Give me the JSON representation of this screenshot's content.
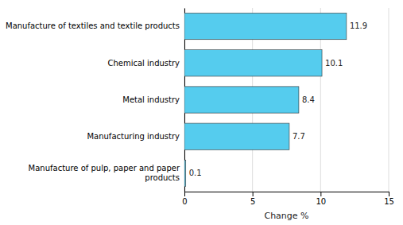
{
  "chart_data": {
    "type": "bar",
    "orientation": "horizontal",
    "categories": [
      "Manufacture of pulp, paper and paper\nproducts",
      "Manufacturing industry",
      "Metal industry",
      "Chemical industry",
      "Manufacture of textiles and textile products"
    ],
    "values": [
      0.1,
      7.7,
      8.4,
      10.1,
      11.9
    ],
    "color": "#55CCEE",
    "data_labels": true,
    "xlabel": "Change %",
    "xlim": [
      0,
      15
    ],
    "xticks": [
      0,
      5,
      10,
      15
    ],
    "grid": true
  }
}
